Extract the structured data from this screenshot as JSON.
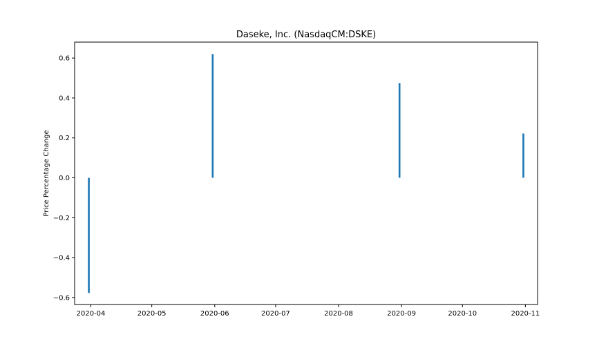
{
  "chart_data": {
    "type": "bar",
    "title": "Daseke, Inc. (NasdaqCM:DSKE)",
    "xlabel": "",
    "ylabel": "Price Percentage Change",
    "x_axis_type": "date",
    "x_range": [
      "2020-03-24",
      "2020-11-07"
    ],
    "ylim": [
      -0.635,
      0.68
    ],
    "grid": false,
    "bar_color": "#1f77b4",
    "x_ticks": [
      "2020-04",
      "2020-05",
      "2020-06",
      "2020-07",
      "2020-08",
      "2020-09",
      "2020-10",
      "2020-11"
    ],
    "y_ticks": [
      "0.6",
      "0.4",
      "0.2",
      "0.0",
      "−0.2",
      "−0.4",
      "−0.6"
    ],
    "y_tick_values": [
      0.6,
      0.4,
      0.2,
      0.0,
      -0.2,
      -0.4,
      -0.6
    ],
    "series": [
      {
        "x": [
          "2020-03-31",
          "2020-05-31",
          "2020-08-31",
          "2020-10-31"
        ],
        "values": [
          -0.577,
          0.62,
          0.475,
          0.222
        ]
      }
    ]
  }
}
